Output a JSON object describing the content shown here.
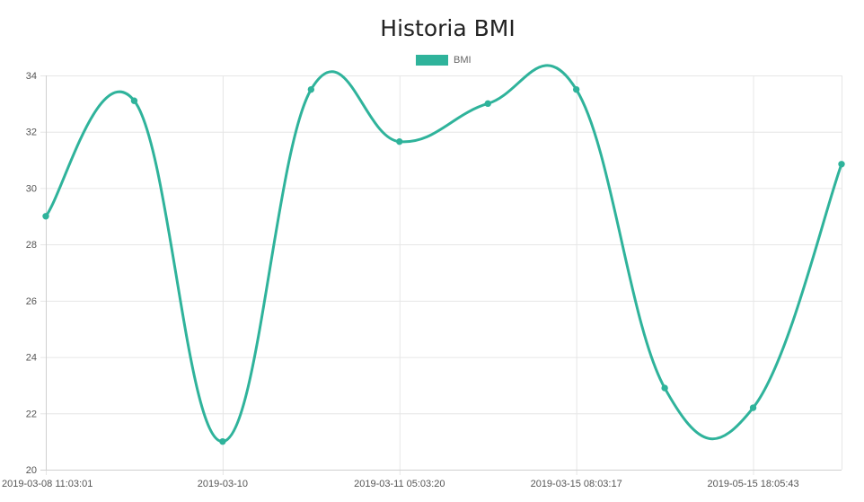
{
  "chart_data": {
    "type": "line",
    "title": "Historia BMI",
    "legend": {
      "position": "top",
      "entries": [
        "BMI"
      ]
    },
    "series": [
      {
        "name": "BMI",
        "color": "#2fb39b",
        "values": [
          29.0,
          33.1,
          21.0,
          33.5,
          31.65,
          33.0,
          33.5,
          22.9,
          22.2,
          30.85
        ]
      }
    ],
    "x": [
      "2019-03-08 11:03:01",
      "",
      "2019-03-10",
      "",
      "2019-03-11 05:03:20",
      "",
      "2019-03-15 08:03:17",
      "",
      "2019-05-15 18:05:43",
      ""
    ],
    "xtick_labels": [
      "2019-03-08 11:03:01",
      "2019-03-10",
      "2019-03-11 05:03:20",
      "2019-03-15 08:03:17",
      "2019-05-15 18:05:43"
    ],
    "ylim": [
      20,
      34
    ],
    "yticks": [
      20,
      22,
      24,
      26,
      28,
      30,
      32,
      34
    ],
    "xlabel": "",
    "ylabel": "",
    "grid": true,
    "smooth": true
  }
}
